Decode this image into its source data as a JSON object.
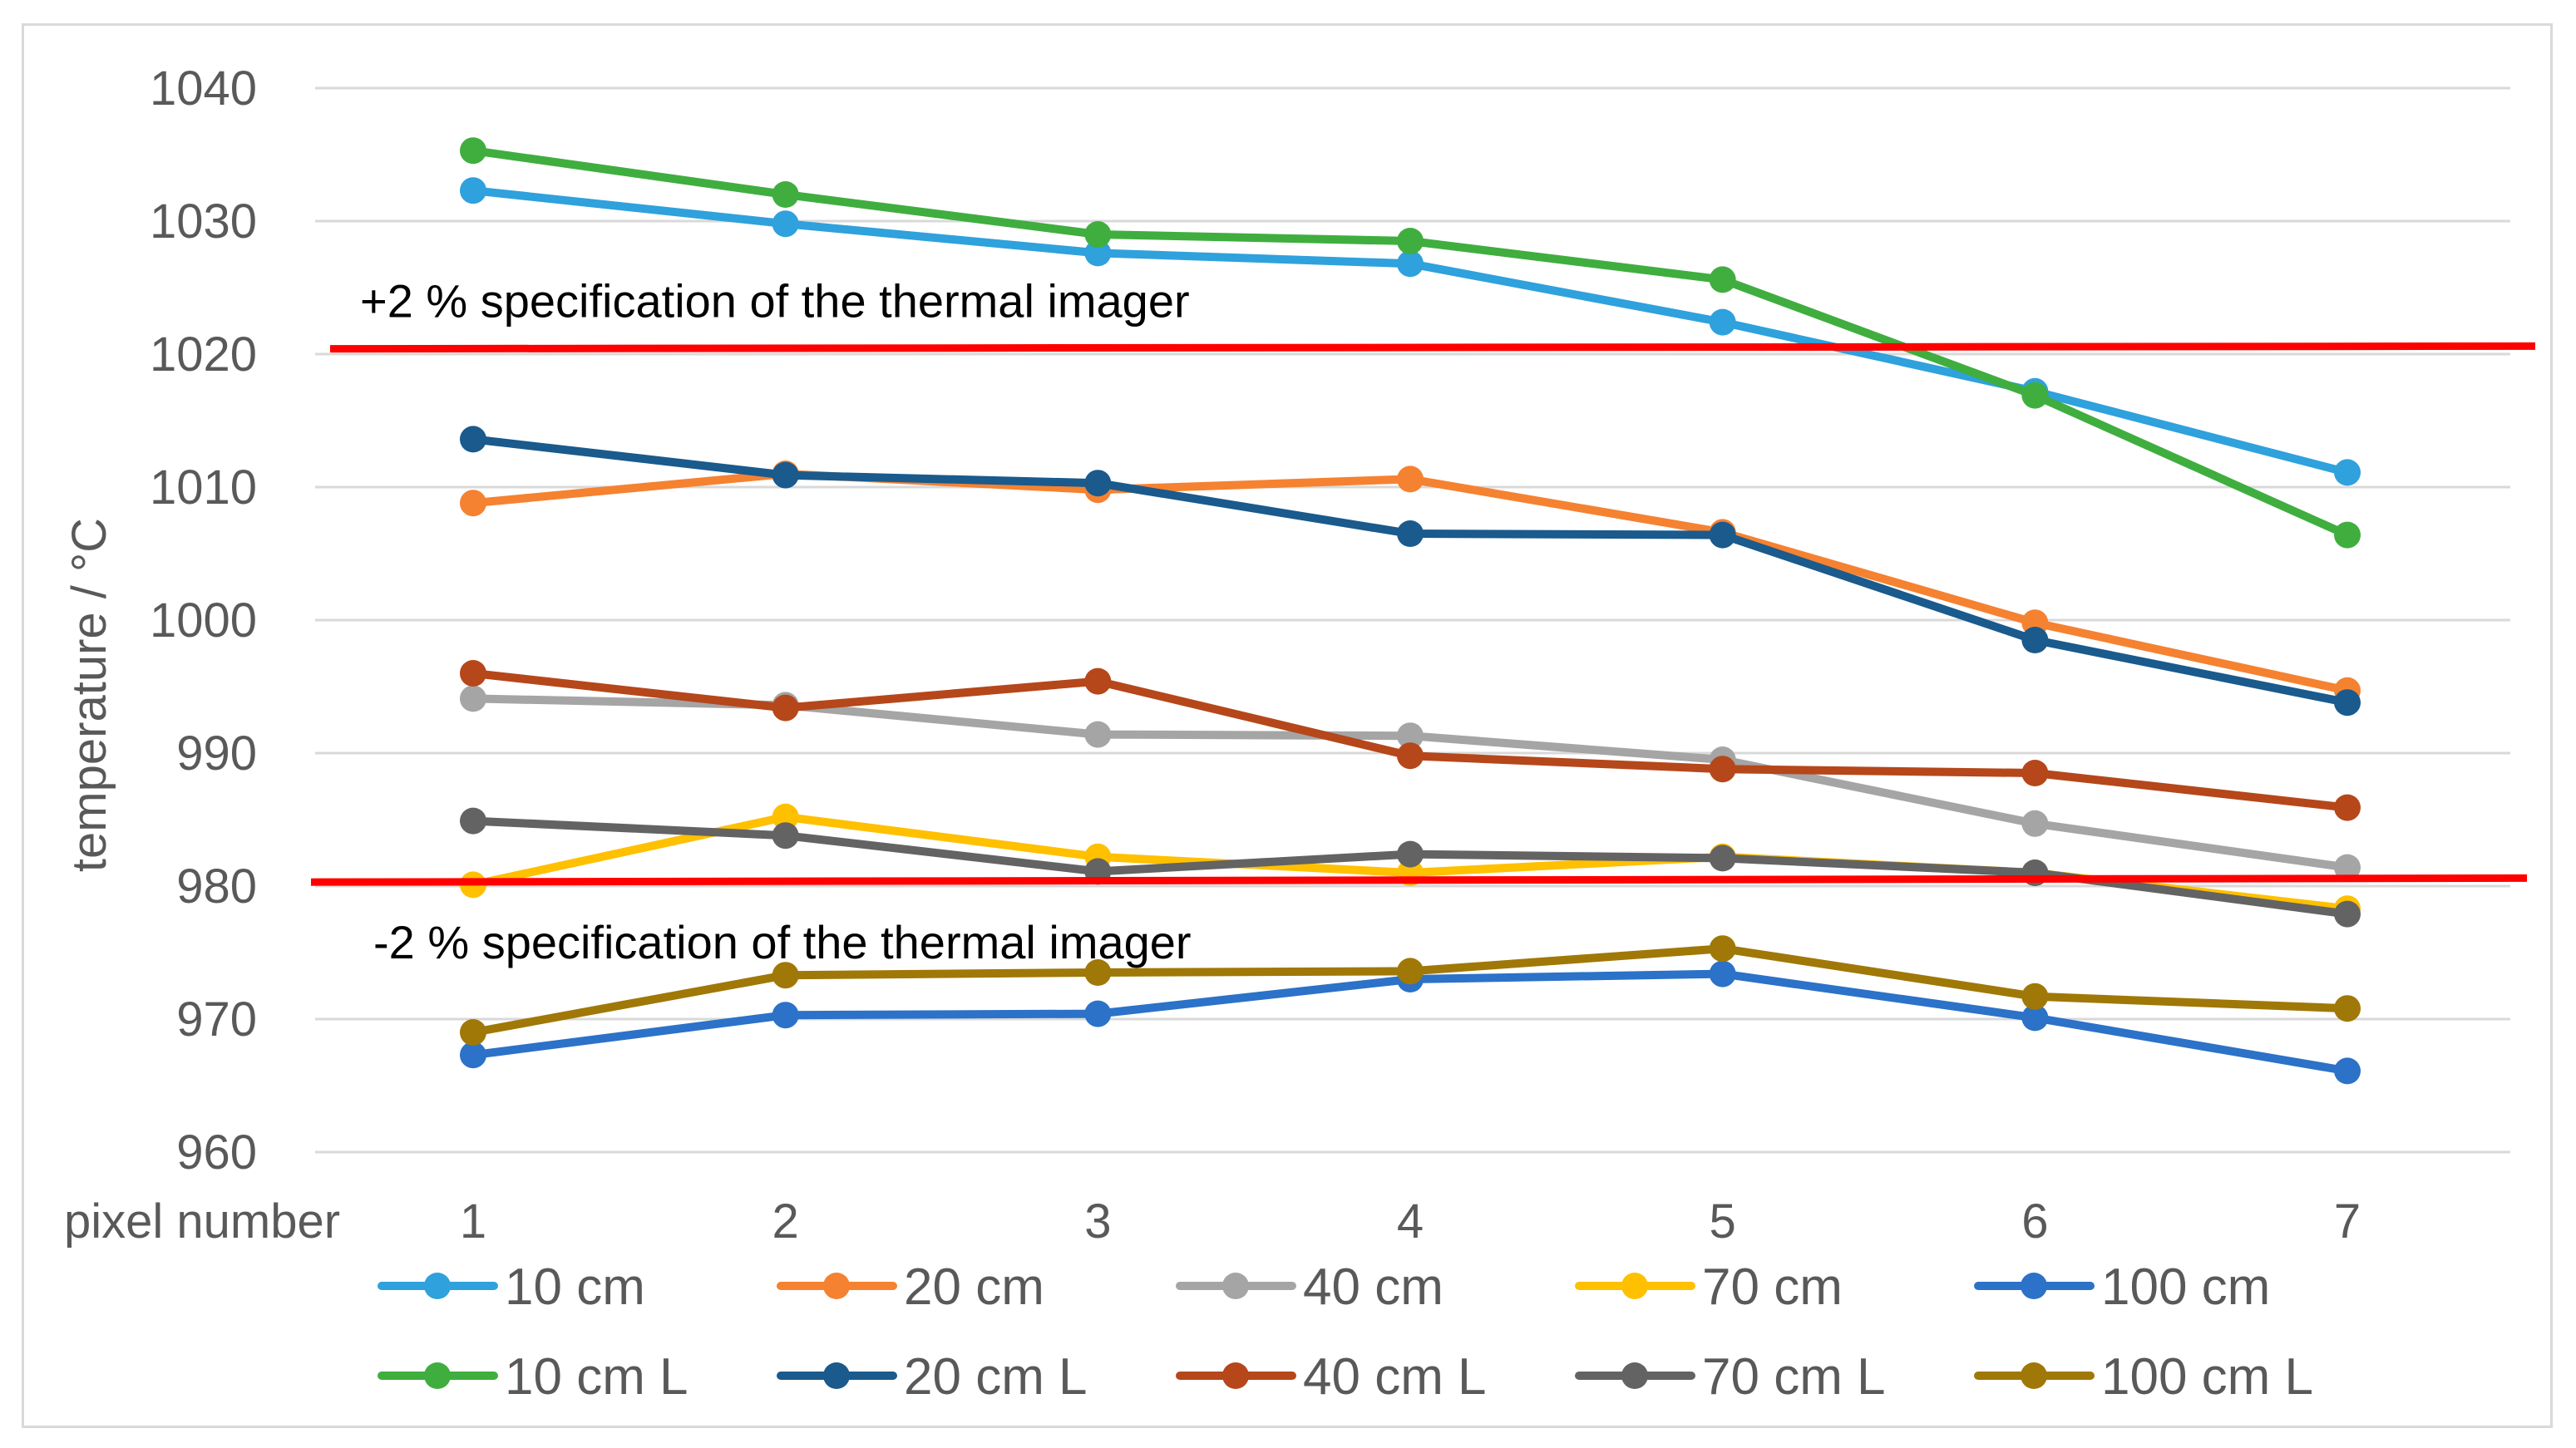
{
  "chart_data": {
    "type": "line",
    "title": "",
    "xlabel": "pixel number",
    "ylabel": "temperature / °C",
    "x": [
      1,
      2,
      3,
      4,
      5,
      6,
      7
    ],
    "x_tick_labels": [
      "1",
      "2",
      "3",
      "4",
      "5",
      "6",
      "7"
    ],
    "ylim": [
      960,
      1040
    ],
    "y_ticks": [
      960,
      970,
      980,
      990,
      1000,
      1010,
      1020,
      1030,
      1040
    ],
    "y_tick_labels": [
      "960",
      "970",
      "980",
      "990",
      "1000",
      "1010",
      "1020",
      "1030",
      "1040"
    ],
    "grid": true,
    "legend_position": "bottom",
    "series": [
      {
        "name": "10 cm",
        "color": "#2fa1dc",
        "values": [
          1032.3,
          1029.8,
          1027.6,
          1026.8,
          1022.4,
          1017.2,
          1011.1
        ]
      },
      {
        "name": "20 cm",
        "color": "#f58231",
        "values": [
          1008.8,
          1011.0,
          1009.8,
          1010.6,
          1006.6,
          999.8,
          994.7
        ]
      },
      {
        "name": "40 cm",
        "color": "#a5a5a5",
        "values": [
          994.1,
          993.6,
          991.4,
          991.3,
          989.5,
          984.7,
          981.4
        ]
      },
      {
        "name": "70 cm",
        "color": "#ffc000",
        "values": [
          980.1,
          985.2,
          982.2,
          981.0,
          982.2,
          981.0,
          978.3
        ]
      },
      {
        "name": "100 cm",
        "color": "#2b72c8",
        "values": [
          967.3,
          970.3,
          970.4,
          973.0,
          973.4,
          970.1,
          966.1
        ]
      },
      {
        "name": "10 cm L",
        "color": "#3fae3f",
        "values": [
          1035.3,
          1032.0,
          1029.0,
          1028.5,
          1025.6,
          1016.9,
          1006.4
        ]
      },
      {
        "name": "20 cm L",
        "color": "#1a5a8c",
        "values": [
          1013.6,
          1010.9,
          1010.3,
          1006.5,
          1006.4,
          998.5,
          993.8
        ]
      },
      {
        "name": "40 cm L",
        "color": "#b5471b",
        "values": [
          996.0,
          993.4,
          995.4,
          989.8,
          988.8,
          988.5,
          985.9
        ]
      },
      {
        "name": "70 cm L",
        "color": "#636363",
        "values": [
          984.9,
          983.8,
          981.1,
          982.4,
          982.1,
          981.0,
          977.9
        ]
      },
      {
        "name": "100 cm L",
        "color": "#a07807",
        "values": [
          969.0,
          973.3,
          973.5,
          973.6,
          975.3,
          971.7,
          970.8
        ]
      }
    ],
    "reference_lines": [
      {
        "label": "+2 % specification of the thermal imager",
        "color": "#ff0000",
        "y_start": 1020.4,
        "y_end": 1020.6
      },
      {
        "label": "-2 % specification of the thermal imager",
        "color": "#ff0000",
        "y_start": 980.3,
        "y_end": 980.6
      }
    ]
  }
}
